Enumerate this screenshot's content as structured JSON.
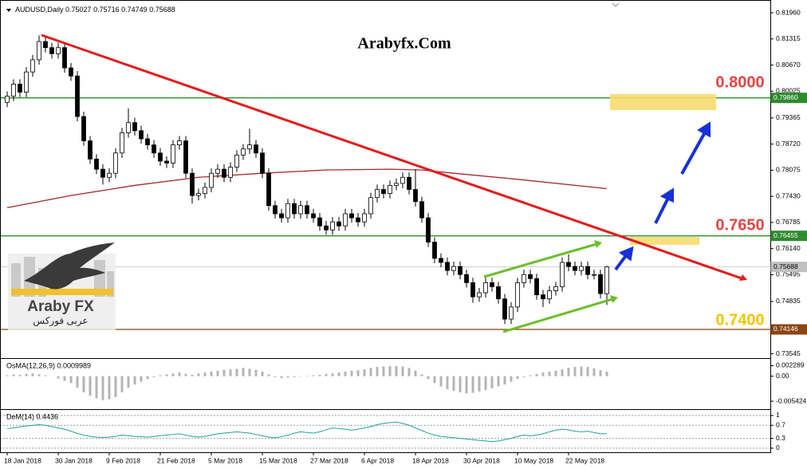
{
  "logo": {
    "name": "Araby FX",
    "arabic": "عربى فوركس"
  },
  "annotations": [
    "0.8000",
    "0.7650",
    "0.7400"
  ],
  "chart_data": [
    {
      "type": "candlestick",
      "title": "Arabyfx.Com",
      "symbol": "AUDUSD,Daily",
      "ohlc": [
        0.75027,
        0.75716,
        0.74749,
        0.75688
      ],
      "bull_color": "#ffffff",
      "bear_color": "#000000",
      "categories": [
        "18 Jan 2018",
        null,
        null,
        null,
        null,
        null,
        null,
        null,
        "30 Jan 2018",
        null,
        null,
        null,
        null,
        null,
        null,
        null,
        "9 Feb 2018",
        null,
        null,
        null,
        null,
        null,
        null,
        null,
        "21 Feb 2018",
        null,
        null,
        null,
        null,
        null,
        null,
        null,
        "5 Mar 2018",
        null,
        null,
        null,
        null,
        null,
        null,
        null,
        "15 Mar 2018",
        null,
        null,
        null,
        null,
        null,
        null,
        null,
        "27 Mar 2018",
        null,
        null,
        null,
        null,
        null,
        null,
        null,
        "6 Apr 2018",
        null,
        null,
        null,
        null,
        null,
        null,
        null,
        "18 Apr 2018",
        null,
        null,
        null,
        null,
        null,
        null,
        null,
        "30 Apr 2018",
        null,
        null,
        null,
        null,
        null,
        null,
        null,
        "10 May 2018",
        null,
        null,
        null,
        null,
        null,
        null,
        null,
        "22 May 2018",
        null,
        null,
        null,
        null,
        null,
        null
      ],
      "candles": [
        [
          0.7975,
          0.8002,
          0.7963,
          0.799
        ],
        [
          0.799,
          0.8032,
          0.7978,
          0.802
        ],
        [
          0.802,
          0.8032,
          0.7988,
          0.8
        ],
        [
          0.8,
          0.8062,
          0.7988,
          0.805
        ],
        [
          0.805,
          0.8092,
          0.8038,
          0.808
        ],
        [
          0.808,
          0.814,
          0.8068,
          0.8125
        ],
        [
          0.8125,
          0.8137,
          0.8098,
          0.811
        ],
        [
          0.811,
          0.8122,
          0.8083,
          0.8095
        ],
        [
          0.8095,
          0.8122,
          0.8083,
          0.811
        ],
        [
          0.811,
          0.8122,
          0.8048,
          0.806
        ],
        [
          0.806,
          0.8072,
          0.8028,
          0.804
        ],
        [
          0.804,
          0.8052,
          0.7928,
          0.794
        ],
        [
          0.794,
          0.7952,
          0.7868,
          0.788
        ],
        [
          0.788,
          0.7892,
          0.7823,
          0.7835
        ],
        [
          0.7835,
          0.7847,
          0.7798,
          0.781
        ],
        [
          0.781,
          0.7822,
          0.7772,
          0.779
        ],
        [
          0.779,
          0.7812,
          0.7778,
          0.78
        ],
        [
          0.78,
          0.7862,
          0.7788,
          0.785
        ],
        [
          0.785,
          0.7912,
          0.7838,
          0.79
        ],
        [
          0.79,
          0.796,
          0.7888,
          0.7925
        ],
        [
          0.7925,
          0.7937,
          0.7893,
          0.7905
        ],
        [
          0.7905,
          0.7917,
          0.7873,
          0.7885
        ],
        [
          0.7885,
          0.7897,
          0.7858,
          0.787
        ],
        [
          0.787,
          0.7882,
          0.7838,
          0.785
        ],
        [
          0.785,
          0.7862,
          0.7818,
          0.783
        ],
        [
          0.783,
          0.7842,
          0.7813,
          0.7825
        ],
        [
          0.7825,
          0.7882,
          0.7813,
          0.787
        ],
        [
          0.787,
          0.7892,
          0.7858,
          0.788
        ],
        [
          0.788,
          0.7892,
          0.7788,
          0.78
        ],
        [
          0.78,
          0.7812,
          0.7725,
          0.7745
        ],
        [
          0.7745,
          0.7762,
          0.7733,
          0.775
        ],
        [
          0.775,
          0.7777,
          0.7738,
          0.7765
        ],
        [
          0.7765,
          0.7812,
          0.7753,
          0.78
        ],
        [
          0.78,
          0.7822,
          0.7788,
          0.781
        ],
        [
          0.781,
          0.7822,
          0.7778,
          0.779
        ],
        [
          0.779,
          0.7827,
          0.7778,
          0.7815
        ],
        [
          0.7815,
          0.7857,
          0.7803,
          0.7845
        ],
        [
          0.7845,
          0.7872,
          0.7833,
          0.786
        ],
        [
          0.786,
          0.791,
          0.7848,
          0.787
        ],
        [
          0.787,
          0.7882,
          0.7838,
          0.785
        ],
        [
          0.785,
          0.7862,
          0.7788,
          0.78
        ],
        [
          0.78,
          0.7812,
          0.7708,
          0.772
        ],
        [
          0.772,
          0.7732,
          0.7688,
          0.77
        ],
        [
          0.77,
          0.7712,
          0.7678,
          0.769
        ],
        [
          0.769,
          0.7737,
          0.7678,
          0.7725
        ],
        [
          0.7725,
          0.7737,
          0.7688,
          0.77
        ],
        [
          0.77,
          0.7732,
          0.7688,
          0.772
        ],
        [
          0.772,
          0.7732,
          0.7688,
          0.77
        ],
        [
          0.77,
          0.7712,
          0.7678,
          0.769
        ],
        [
          0.769,
          0.7702,
          0.7658,
          0.767
        ],
        [
          0.767,
          0.7682,
          0.7648,
          0.766
        ],
        [
          0.766,
          0.7692,
          0.7648,
          0.768
        ],
        [
          0.768,
          0.7692,
          0.7658,
          0.767
        ],
        [
          0.767,
          0.7712,
          0.7658,
          0.77
        ],
        [
          0.77,
          0.7712,
          0.7678,
          0.769
        ],
        [
          0.769,
          0.7702,
          0.7668,
          0.768
        ],
        [
          0.768,
          0.7712,
          0.7668,
          0.77
        ],
        [
          0.77,
          0.7752,
          0.7688,
          0.774
        ],
        [
          0.774,
          0.7772,
          0.7728,
          0.776
        ],
        [
          0.776,
          0.7772,
          0.7738,
          0.775
        ],
        [
          0.775,
          0.7782,
          0.7738,
          0.777
        ],
        [
          0.777,
          0.7787,
          0.7758,
          0.7775
        ],
        [
          0.7775,
          0.7802,
          0.7763,
          0.779
        ],
        [
          0.779,
          0.7802,
          0.7748,
          0.776
        ],
        [
          0.776,
          0.781,
          0.7718,
          0.773
        ],
        [
          0.773,
          0.7742,
          0.7678,
          0.769
        ],
        [
          0.769,
          0.7702,
          0.7618,
          0.763
        ],
        [
          0.763,
          0.7642,
          0.7578,
          0.759
        ],
        [
          0.759,
          0.7602,
          0.7568,
          0.758
        ],
        [
          0.758,
          0.7592,
          0.7548,
          0.756
        ],
        [
          0.756,
          0.7582,
          0.7548,
          0.757
        ],
        [
          0.757,
          0.7582,
          0.7538,
          0.755
        ],
        [
          0.755,
          0.7562,
          0.7518,
          0.753
        ],
        [
          0.753,
          0.7542,
          0.748,
          0.7495
        ],
        [
          0.7495,
          0.7517,
          0.7483,
          0.7505
        ],
        [
          0.7505,
          0.7542,
          0.7493,
          0.753
        ],
        [
          0.753,
          0.7542,
          0.7508,
          0.752
        ],
        [
          0.752,
          0.7532,
          0.7478,
          0.749
        ],
        [
          0.749,
          0.7502,
          0.7428,
          0.744
        ],
        [
          0.744,
          0.7482,
          0.7428,
          0.747
        ],
        [
          0.747,
          0.7542,
          0.7458,
          0.753
        ],
        [
          0.753,
          0.7562,
          0.7518,
          0.755
        ],
        [
          0.755,
          0.7562,
          0.7528,
          0.754
        ],
        [
          0.754,
          0.7552,
          0.7488,
          0.75
        ],
        [
          0.75,
          0.7512,
          0.747,
          0.749
        ],
        [
          0.749,
          0.7522,
          0.7478,
          0.751
        ],
        [
          0.751,
          0.7532,
          0.7498,
          0.752
        ],
        [
          0.752,
          0.7592,
          0.7508,
          0.758
        ],
        [
          0.758,
          0.76,
          0.7558,
          0.757
        ],
        [
          0.757,
          0.7582,
          0.7548,
          0.756
        ],
        [
          0.756,
          0.7582,
          0.7548,
          0.757
        ],
        [
          0.757,
          0.7582,
          0.7538,
          0.755
        ],
        [
          0.755,
          0.7562,
          0.7538,
          0.755
        ],
        [
          0.755,
          0.7562,
          0.7491,
          0.7503
        ],
        [
          0.75027,
          0.75716,
          0.74749,
          0.75688
        ]
      ],
      "ma": {
        "color": "#a52a2a",
        "x": [
          0,
          10,
          20,
          30,
          40,
          50,
          60,
          65,
          70,
          80,
          94
        ],
        "values": [
          0.7715,
          0.7745,
          0.777,
          0.779,
          0.78,
          0.7808,
          0.781,
          0.7808,
          0.78,
          0.7785,
          0.7762
        ]
      },
      "ylim": [
        0.73457,
        0.82177
      ],
      "yticks": [
        {
          "value": 0.8196,
          "label": "0.81960"
        },
        0.81315,
        {
          "value": 0.8067,
          "label": "0.80670"
        },
        0.80025,
        0.79365,
        {
          "value": 0.7872,
          "label": "0.78720"
        },
        0.78075,
        {
          "value": 0.7743,
          "label": "0.77430"
        },
        0.76785,
        {
          "value": 0.7614,
          "label": "0.76140"
        },
        0.75495,
        0.74835,
        0.73545
      ],
      "levels": [
        {
          "value": 0.7986,
          "label": "0.79860",
          "color": "#2e8b2e",
          "text_color": "#ffffff"
        },
        {
          "value": 0.76455,
          "color": "#2e8b2e",
          "text_color": "#ffffff"
        },
        {
          "value": 0.75688,
          "color": "#c0c0c0",
          "text_color": "#000000"
        },
        {
          "value": 0.74146,
          "color": "#8b4513",
          "text_color": "#ffffff"
        }
      ]
    },
    {
      "type": "bar",
      "title": "OsMA(12,26,9) 0.0009989",
      "color": "#b4b4b4",
      "values": [
        0.0002,
        0.0004,
        0.0003,
        0.0005,
        0.0006,
        0.0004,
        0.0002,
        0,
        -0.0005,
        -0.001,
        -0.0015,
        -0.0025,
        -0.0035,
        -0.0042,
        -0.0048,
        -0.0052,
        -0.005,
        -0.0045,
        -0.0035,
        -0.0025,
        -0.0018,
        -0.0012,
        -0.0006,
        -0.0002,
        0.0002,
        0.0004,
        0.0006,
        0.0008,
        0.0005,
        0.0003,
        0.0006,
        0.0008,
        0.001,
        0.0012,
        0.0014,
        0.0015,
        0.0016,
        0.0018,
        0.0016,
        0.0014,
        0.001,
        0.0004,
        -0.0002,
        -0.0004,
        -0.0003,
        -0.0002,
        -0.0001,
        0.0001,
        0.0002,
        0.0003,
        0.0005,
        0.0006,
        0.0008,
        0.001,
        0.0012,
        0.0013,
        0.0015,
        0.0018,
        0.002,
        0.0021,
        0.0022,
        0.0022,
        0.0021,
        0.0018,
        0.0012,
        0.0004,
        -0.0006,
        -0.0015,
        -0.0022,
        -0.0028,
        -0.0032,
        -0.0035,
        -0.0037,
        -0.0036,
        -0.0033,
        -0.003,
        -0.0026,
        -0.0022,
        -0.0018,
        -0.0012,
        -0.0006,
        -0.0002,
        0.0002,
        0.0005,
        0.0008,
        0.001,
        0.0012,
        0.0015,
        0.0018,
        0.002,
        0.0021,
        0.002,
        0.0017,
        0.0013,
        0.001
      ],
      "ylim": [
        -0.0068,
        0.0034
      ],
      "yticks": [
        0.002289,
        {
          "value": 0,
          "label": "0.00"
        },
        -0.005424
      ]
    },
    {
      "type": "line",
      "title": "DeM(14) 0.4436",
      "color": "#20a0a0",
      "grid": true,
      "values": [
        0.6,
        0.62,
        0.65,
        0.68,
        0.7,
        0.72,
        0.7,
        0.66,
        0.62,
        0.58,
        0.52,
        0.45,
        0.4,
        0.36,
        0.34,
        0.33,
        0.34,
        0.36,
        0.4,
        0.38,
        0.36,
        0.35,
        0.34,
        0.36,
        0.38,
        0.4,
        0.42,
        0.44,
        0.4,
        0.36,
        0.34,
        0.36,
        0.4,
        0.44,
        0.46,
        0.48,
        0.5,
        0.48,
        0.46,
        0.42,
        0.38,
        0.34,
        0.32,
        0.35,
        0.4,
        0.46,
        0.5,
        0.48,
        0.46,
        0.5,
        0.56,
        0.62,
        0.6,
        0.58,
        0.55,
        0.58,
        0.62,
        0.66,
        0.72,
        0.76,
        0.78,
        0.8,
        0.76,
        0.7,
        0.62,
        0.54,
        0.46,
        0.4,
        0.36,
        0.34,
        0.32,
        0.3,
        0.28,
        0.26,
        0.24,
        0.22,
        0.2,
        0.22,
        0.26,
        0.3,
        0.36,
        0.4,
        0.38,
        0.4,
        0.44,
        0.5,
        0.55,
        0.58,
        0.56,
        0.52,
        0.5,
        0.52,
        0.48,
        0.44,
        0.4436
      ],
      "ylim": [
        -0.1,
        1.12
      ],
      "yticks": [
        1,
        0.7,
        0.3,
        0
      ]
    }
  ]
}
